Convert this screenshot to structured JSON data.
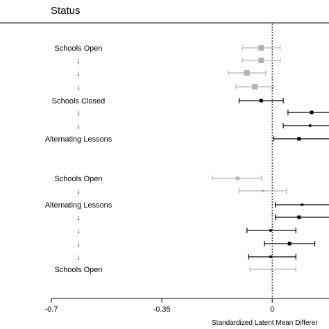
{
  "chart_data": {
    "type": "forest",
    "title": "Status",
    "xlabel": "Standardized Latent Mean Differer",
    "xlim": [
      -0.7,
      0.18
    ],
    "xticks": [
      -0.7,
      -0.35,
      0
    ],
    "xtick_labels": [
      "-0.7",
      "-0.35",
      "0"
    ],
    "reference_line": 0,
    "colors": {
      "gray": "#b3b3b3",
      "black": "#000000"
    },
    "rows": [
      {
        "label": "Schools Open",
        "est": -0.035,
        "lo": -0.095,
        "hi": 0.025,
        "color": "gray",
        "size": "large"
      },
      {
        "label": "↓",
        "est": -0.035,
        "lo": -0.095,
        "hi": 0.025,
        "color": "gray",
        "size": "large"
      },
      {
        "label": "↓",
        "est": -0.08,
        "lo": -0.14,
        "hi": -0.02,
        "color": "gray",
        "size": "large"
      },
      {
        "label": "↓",
        "est": -0.055,
        "lo": -0.115,
        "hi": 0.005,
        "color": "gray",
        "size": "large"
      },
      {
        "label": "Schools Closed",
        "est": -0.035,
        "lo": -0.105,
        "hi": 0.035,
        "color": "black",
        "size": "medium"
      },
      {
        "label": "↓",
        "est": 0.125,
        "lo": 0.05,
        "hi": 0.2,
        "color": "black",
        "size": "medium"
      },
      {
        "label": "↓",
        "est": 0.12,
        "lo": 0.035,
        "hi": 0.2,
        "color": "black",
        "size": "small"
      },
      {
        "label": "Alternating Lessons",
        "est": 0.085,
        "lo": 0.005,
        "hi": 0.2,
        "color": "black",
        "size": "medium"
      },
      {
        "label": "Schools Open",
        "est": -0.11,
        "lo": -0.19,
        "hi": -0.035,
        "color": "gray",
        "size": "medium"
      },
      {
        "label": "↓",
        "est": -0.03,
        "lo": -0.105,
        "hi": 0.045,
        "color": "gray",
        "size": "small"
      },
      {
        "label": "Alternating Lessons",
        "est": 0.095,
        "lo": 0.01,
        "hi": 0.2,
        "color": "black",
        "size": "small"
      },
      {
        "label": "↓",
        "est": 0.085,
        "lo": 0.01,
        "hi": 0.2,
        "color": "black",
        "size": "medium"
      },
      {
        "label": "↓",
        "est": -0.005,
        "lo": -0.08,
        "hi": 0.075,
        "color": "black",
        "size": "small"
      },
      {
        "label": "↓",
        "est": 0.055,
        "lo": -0.025,
        "hi": 0.135,
        "color": "black",
        "size": "medium"
      },
      {
        "label": "↓",
        "est": -0.005,
        "lo": -0.075,
        "hi": 0.075,
        "color": "black",
        "size": "small"
      },
      {
        "label": "Schools Open",
        "est": 0.0,
        "lo": -0.07,
        "hi": 0.075,
        "color": "gray",
        "size": "small"
      }
    ]
  }
}
